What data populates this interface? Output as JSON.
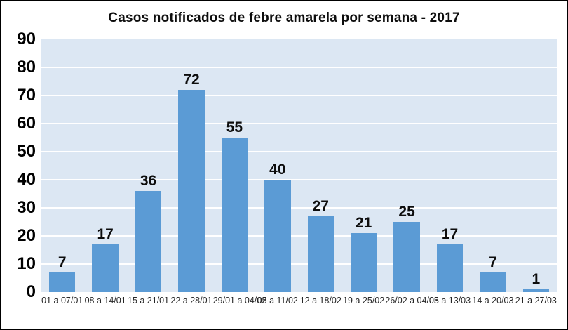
{
  "chart_data": {
    "type": "bar",
    "title": "Casos notificados de febre amarela por semana - 2017",
    "categories": [
      "01 a 07/01",
      "08 a 14/01",
      "15 a 21/01",
      "22 a 28/01",
      "29/01 a 04/02",
      "05 a 11/02",
      "12 a 18/02",
      "19 a 25/02",
      "26/02 a 04/03",
      "05 a 13/03",
      "14 a 20/03",
      "21 a 27/03"
    ],
    "values": [
      7,
      17,
      36,
      72,
      55,
      40,
      27,
      21,
      25,
      17,
      7,
      1
    ],
    "xlabel": "",
    "ylabel": "",
    "ylim": [
      0,
      90
    ],
    "yticks": [
      0,
      10,
      20,
      30,
      40,
      50,
      60,
      70,
      80,
      90
    ],
    "grid": "horizontal-white-lines",
    "legend": "none",
    "data_labels": true,
    "bar_color": "#5b9bd5",
    "plot_background": "#dce7f3",
    "gridline_color": "#ffffff",
    "text_color": "#0d0d0d",
    "frame_border_color": "#000000"
  }
}
